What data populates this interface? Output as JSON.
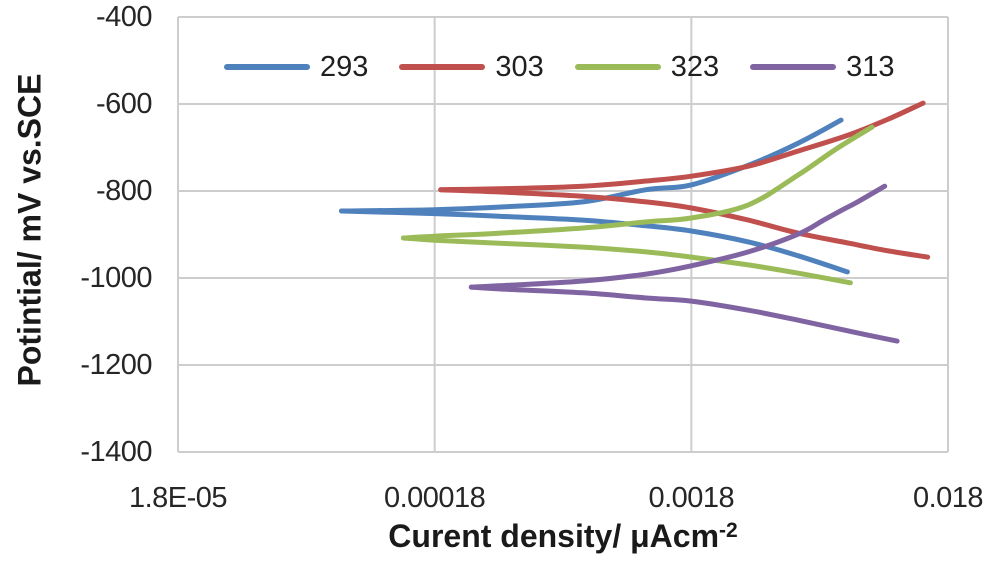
{
  "chart_data": {
    "type": "line",
    "title": "",
    "xlabel": "Curent density/ μAcm",
    "xlabel_superscript": "-2",
    "ylabel": "Potintial/ mV vs.SCE",
    "x_scale": "log",
    "y_scale": "linear",
    "xlim": [
      1.8e-05,
      0.018
    ],
    "ylim": [
      -1400,
      -400
    ],
    "grid": true,
    "grid_color": "#cdcdcd",
    "text_color": "#262626",
    "legend_position": "top-center-inside",
    "x_ticks": [
      {
        "value": 1.8e-05,
        "label": "1.8E-05"
      },
      {
        "value": 0.00018,
        "label": "0.00018"
      },
      {
        "value": 0.0018,
        "label": "0.0018"
      },
      {
        "value": 0.018,
        "label": "0.018"
      }
    ],
    "y_ticks": [
      {
        "value": -400,
        "label": "-400"
      },
      {
        "value": -600,
        "label": "-600"
      },
      {
        "value": -800,
        "label": "-800"
      },
      {
        "value": -1000,
        "label": "-1000"
      },
      {
        "value": -1200,
        "label": "-1200"
      },
      {
        "value": -1400,
        "label": "-1400"
      }
    ],
    "series": [
      {
        "name": "293",
        "color": "#4F81BD",
        "anodic": [
          [
            7.8e-05,
            -846
          ],
          [
            0.00018,
            -843
          ],
          [
            0.00032,
            -837
          ],
          [
            0.00068,
            -825
          ],
          [
            0.0012,
            -797
          ],
          [
            0.0018,
            -786
          ],
          [
            0.003,
            -741
          ],
          [
            0.0047,
            -690
          ],
          [
            0.0069,
            -637
          ]
        ],
        "cathodic": [
          [
            7.8e-05,
            -846
          ],
          [
            0.00018,
            -852
          ],
          [
            0.00032,
            -858
          ],
          [
            0.00068,
            -867
          ],
          [
            0.0012,
            -880
          ],
          [
            0.0018,
            -892
          ],
          [
            0.003,
            -917
          ],
          [
            0.0047,
            -949
          ],
          [
            0.0073,
            -986
          ]
        ]
      },
      {
        "name": "303",
        "color": "#C0504D",
        "anodic": [
          [
            0.00019,
            -797
          ],
          [
            0.00032,
            -795
          ],
          [
            0.00068,
            -789
          ],
          [
            0.0012,
            -777
          ],
          [
            0.0018,
            -766
          ],
          [
            0.003,
            -743
          ],
          [
            0.0047,
            -708
          ],
          [
            0.0074,
            -671
          ],
          [
            0.0106,
            -634
          ],
          [
            0.0144,
            -598
          ]
        ],
        "cathodic": [
          [
            0.00019,
            -797
          ],
          [
            0.00032,
            -802
          ],
          [
            0.00068,
            -812
          ],
          [
            0.0012,
            -825
          ],
          [
            0.0018,
            -839
          ],
          [
            0.003,
            -867
          ],
          [
            0.0047,
            -897
          ],
          [
            0.0074,
            -920
          ],
          [
            0.0106,
            -938
          ],
          [
            0.015,
            -952
          ]
        ]
      },
      {
        "name": "323",
        "color": "#9BBB59",
        "anodic": [
          [
            0.000136,
            -908
          ],
          [
            0.00018,
            -904
          ],
          [
            0.00032,
            -897
          ],
          [
            0.00068,
            -885
          ],
          [
            0.0012,
            -871
          ],
          [
            0.0018,
            -862
          ],
          [
            0.003,
            -832
          ],
          [
            0.0047,
            -763
          ],
          [
            0.0065,
            -706
          ],
          [
            0.0091,
            -653
          ]
        ],
        "cathodic": [
          [
            0.000136,
            -908
          ],
          [
            0.00018,
            -913
          ],
          [
            0.00032,
            -920
          ],
          [
            0.00068,
            -929
          ],
          [
            0.0012,
            -940
          ],
          [
            0.0018,
            -952
          ],
          [
            0.003,
            -970
          ],
          [
            0.0047,
            -989
          ],
          [
            0.0075,
            -1011
          ]
        ]
      },
      {
        "name": "313",
        "color": "#8064A2",
        "anodic": [
          [
            0.00025,
            -1021
          ],
          [
            0.00032,
            -1018
          ],
          [
            0.00068,
            -1007
          ],
          [
            0.0012,
            -991
          ],
          [
            0.0018,
            -972
          ],
          [
            0.003,
            -940
          ],
          [
            0.0047,
            -899
          ],
          [
            0.0059,
            -867
          ],
          [
            0.0069,
            -845
          ],
          [
            0.008,
            -825
          ],
          [
            0.0102,
            -789
          ]
        ],
        "cathodic": [
          [
            0.00025,
            -1021
          ],
          [
            0.00032,
            -1025
          ],
          [
            0.00068,
            -1034
          ],
          [
            0.0012,
            -1046
          ],
          [
            0.0018,
            -1053
          ],
          [
            0.003,
            -1074
          ],
          [
            0.0047,
            -1097
          ],
          [
            0.0074,
            -1122
          ],
          [
            0.0114,
            -1145
          ]
        ]
      }
    ]
  }
}
